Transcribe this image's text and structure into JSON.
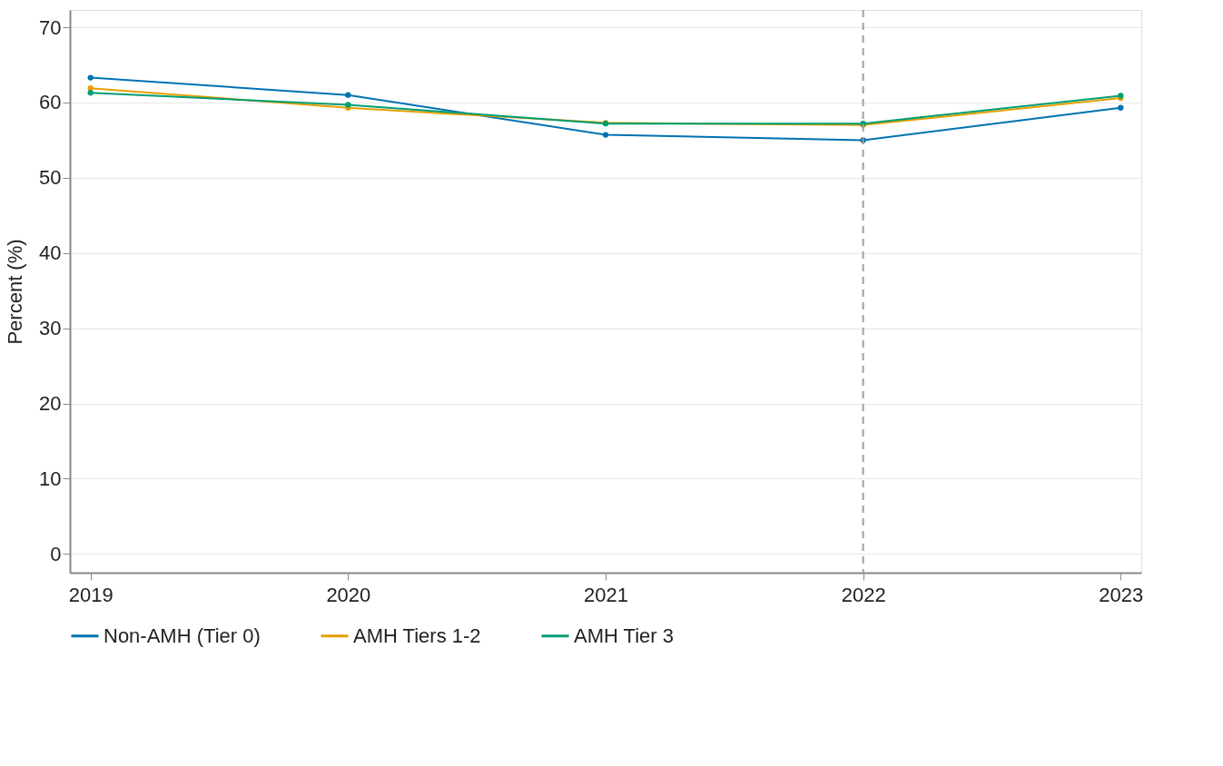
{
  "chart_data": {
    "type": "line",
    "ylabel": "Percent (%)",
    "x": [
      2019,
      2020,
      2021,
      2022,
      2023
    ],
    "series": [
      {
        "name": "Non-AMH (Tier 0)",
        "color": "#0072b2",
        "values": [
          63.3,
          61.0,
          55.7,
          55.0,
          59.3
        ]
      },
      {
        "name": "AMH Tiers 1-2",
        "color": "#e69f00",
        "values": [
          61.9,
          59.3,
          57.3,
          57.0,
          60.6
        ]
      },
      {
        "name": "AMH Tier 3",
        "color": "#009e73",
        "values": [
          61.3,
          59.7,
          57.2,
          57.2,
          60.9
        ]
      }
    ],
    "xlim": [
      2018.92,
      2023.08
    ],
    "xticks": [
      2019,
      2020,
      2021,
      2022,
      2023
    ],
    "ylim": [
      -2.5,
      72.3
    ],
    "yticks": [
      0,
      10,
      20,
      30,
      40,
      50,
      60,
      70
    ],
    "ref_lines": [
      {
        "axis": "x",
        "value": 2022,
        "color": "#a0a0a0",
        "line_style": "dashed"
      }
    ],
    "grid": "y",
    "legend": "bottom",
    "marker": "circle",
    "line_style": "solid"
  }
}
